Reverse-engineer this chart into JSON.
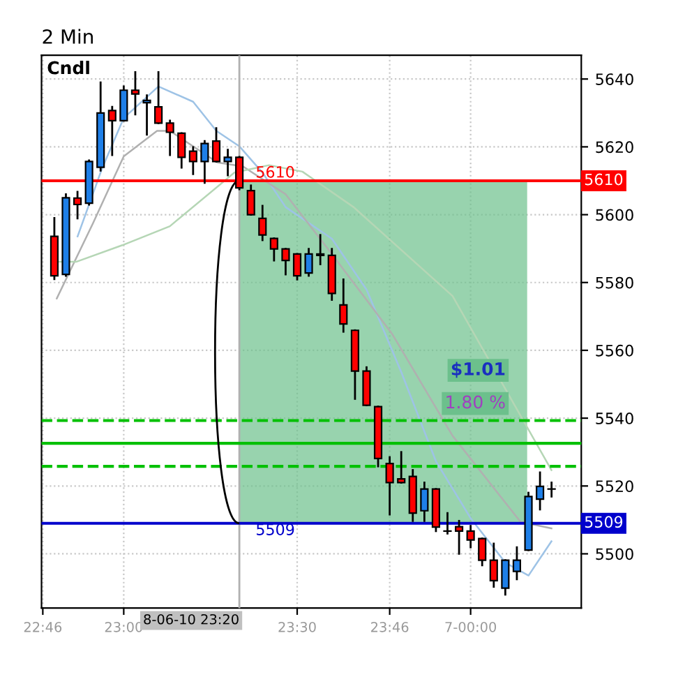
{
  "chart_data": {
    "type": "candlestick",
    "title": "2 Min",
    "x": [
      22.8,
      22.8333,
      22.8667,
      22.9,
      22.9333,
      22.9667,
      23.0,
      23.0333,
      23.0667,
      23.1,
      23.1333,
      23.1667,
      23.2,
      23.2333,
      23.2667,
      23.3,
      23.3333,
      23.3667,
      23.4,
      23.4333,
      23.4667,
      23.5,
      23.5333,
      23.5667,
      23.6,
      23.6333,
      23.6667,
      23.7,
      23.7333,
      23.7667,
      23.8,
      23.8333,
      23.8667,
      23.9,
      23.9333,
      23.9667,
      24.0,
      24.0333,
      24.0667,
      24.1,
      24.1333,
      24.1667,
      24.2,
      24.2333
    ],
    "ohlc": [
      [
        5593.6,
        5599,
        5581,
        5582
      ],
      [
        5582.4,
        5606,
        5582,
        5605
      ],
      [
        5604.9,
        5606.7,
        5598.9,
        5603
      ],
      [
        5603.4,
        5616,
        5603,
        5615.7
      ],
      [
        5614,
        5639,
        5613,
        5630
      ],
      [
        5630.7,
        5631.8,
        5617.6,
        5627.7
      ],
      [
        5627.7,
        5637.8,
        5627.7,
        5636.7
      ],
      [
        5636.7,
        5642,
        5629.6,
        5635.6
      ],
      [
        5633,
        5635.2,
        5623.6,
        5633.7
      ],
      [
        5631.8,
        5642,
        5627,
        5627
      ],
      [
        5627,
        5627.7,
        5617.6,
        5624.3
      ],
      [
        5624,
        5624,
        5613.9,
        5616.9
      ],
      [
        5618.7,
        5619.9,
        5612,
        5615.7
      ],
      [
        5615.7,
        5621.7,
        5609.4,
        5621
      ],
      [
        5621.7,
        5625.5,
        5615.7,
        5615.7
      ],
      [
        5615.7,
        5619.1,
        5611.6,
        5616.9
      ],
      [
        5616.9,
        5617,
        5607.5,
        5607.9
      ],
      [
        5607.1,
        5608.6,
        5600,
        5600
      ],
      [
        5598.9,
        5602.6,
        5592.5,
        5594
      ],
      [
        5593,
        5593,
        5586.5,
        5589.9
      ],
      [
        5589.9,
        5589.9,
        5582.4,
        5586.5
      ],
      [
        5588.4,
        5588.4,
        5580.9,
        5582
      ],
      [
        5582.8,
        5589.9,
        5582,
        5588.4
      ],
      [
        5588,
        5594,
        5585.4,
        5588.4
      ],
      [
        5588,
        5589.9,
        5574.9,
        5576.8
      ],
      [
        5573.4,
        5580.9,
        5565.5,
        5567.8
      ],
      [
        5565.9,
        5565.9,
        5545.7,
        5553.9
      ],
      [
        5553.9,
        5555,
        5543.8,
        5543.8
      ],
      [
        5543.4,
        5543.4,
        5525.8,
        5528.1
      ],
      [
        5526.6,
        5528.5,
        5511.6,
        5521
      ],
      [
        5522.1,
        5530,
        5521,
        5521
      ],
      [
        5522.8,
        5524.7,
        5509.7,
        5512
      ],
      [
        5512.7,
        5521,
        5509.7,
        5519.1
      ],
      [
        5519.1,
        5519.1,
        5506.7,
        5507.9
      ],
      [
        5506.7,
        5512,
        5506,
        5506.7
      ],
      [
        5508,
        5509.7,
        5500,
        5506.7
      ],
      [
        5506.7,
        5508.2,
        5501.9,
        5504.1
      ],
      [
        5504.5,
        5504.5,
        5496.6,
        5498.1
      ],
      [
        5498.1,
        5503,
        5490.3,
        5492.1
      ],
      [
        5489.9,
        5498.1,
        5488,
        5498.1
      ],
      [
        5494.8,
        5501.9,
        5492.5,
        5498.1
      ],
      [
        5501.1,
        5518,
        5501.1,
        5516.9
      ],
      [
        5516.1,
        5524,
        5513.1,
        5519.9
      ],
      [
        5519.1,
        5521,
        5516.9,
        5519.1
      ]
    ],
    "colors": [
      "#ff0000",
      "#1e7fe8",
      "#ff0000",
      "#1e7fe8",
      "#1e7fe8",
      "#ff0000",
      "#1e7fe8",
      "#ff0000",
      "#1e7fe8",
      "#ff0000",
      "#ff0000",
      "#ff0000",
      "#ff0000",
      "#1e7fe8",
      "#ff0000",
      "#1e7fe8",
      "#ff0000",
      "#ff0000",
      "#ff0000",
      "#ff0000",
      "#ff0000",
      "#ff0000",
      "#1e7fe8",
      "#1e7fe8",
      "#ff0000",
      "#ff0000",
      "#ff0000",
      "#ff0000",
      "#ff0000",
      "#ff0000",
      "#ff0000",
      "#ff0000",
      "#1e7fe8",
      "#ff0000",
      "#000000",
      "#ff0000",
      "#ff0000",
      "#ff0000",
      "#ff0000",
      "#1e7fe8",
      "#1e7fe8",
      "#1e7fe8",
      "#1e7fe8",
      "#000000"
    ],
    "series": [
      {
        "type": "line",
        "color": "#9ec3e6",
        "x": [
          22.867,
          22.937,
          23.0,
          23.1,
          23.2,
          23.267,
          23.333,
          23.4,
          23.467,
          23.6,
          23.7,
          23.8,
          23.9,
          24.0,
          24.1,
          24.167,
          24.233
        ],
        "values": [
          5593.6,
          5613.5,
          5628.5,
          5637.8,
          5633.3,
          5624.7,
          5620.2,
          5612.4,
          5602.2,
          5592.9,
          5577.9,
          5553.6,
          5527.3,
          5510.5,
          5497.4,
          5493.6,
          5503.7
        ]
      },
      {
        "type": "line",
        "color": "#b0b0b0",
        "x": [
          22.807,
          22.911,
          23.0,
          23.096,
          23.133,
          23.27,
          23.344,
          23.467,
          23.589,
          23.774,
          23.948,
          24.144,
          24.233
        ],
        "values": [
          5575.3,
          5597.4,
          5617.2,
          5624.7,
          5624.7,
          5615.4,
          5614.2,
          5606.0,
          5589.9,
          5564.8,
          5534.8,
          5509.4,
          5507.5
        ]
      },
      {
        "type": "line",
        "color": "#b5d6b5",
        "x": [
          22.807,
          22.863,
          22.996,
          23.133,
          23.319,
          23.419,
          23.515,
          23.663,
          23.948,
          24.233
        ],
        "values": [
          5586.1,
          5586.1,
          5591.0,
          5596.6,
          5612.4,
          5614.6,
          5612.7,
          5602.2,
          5576.0,
          5524.7
        ]
      }
    ],
    "xlim": [
      22.763,
      24.319
    ],
    "ylim": [
      5484,
      5647
    ],
    "xticks": [
      {
        "value": 22.7667,
        "label": "22:46"
      },
      {
        "value": 23.0,
        "label": "23:00"
      },
      {
        "value": 23.5,
        "label": "23:30"
      },
      {
        "value": 23.7667,
        "label": "23:46"
      },
      {
        "value": 24.0,
        "label": "7-00:00"
      }
    ],
    "yticks": [
      5500,
      5520,
      5540,
      5560,
      5580,
      5600,
      5620,
      5640
    ],
    "grid": true,
    "ref_lines": [
      {
        "axis": "y",
        "value": 5610,
        "label": "5610",
        "color": "#ff0000"
      },
      {
        "axis": "y",
        "value": 5509,
        "label": "5509",
        "color": "#0000cc"
      },
      {
        "axis": "y",
        "value": 5539.3,
        "color": "#00c000",
        "line_style": "dashed"
      },
      {
        "axis": "y",
        "value": 5532.6,
        "color": "#00c000",
        "line_style": "solid"
      },
      {
        "axis": "y",
        "value": 5525.8,
        "color": "#00c000",
        "line_style": "dashed"
      },
      {
        "axis": "x",
        "value": 23.3333,
        "label": "8-06-10 23:20",
        "color": "#b0b0b0"
      }
    ],
    "bands": [
      {
        "axis": "x",
        "from": 23.3333,
        "to": 24.163,
        "color": "#6cc08c"
      }
    ],
    "annotations": [
      "Cndl",
      "$1.01",
      "1.80 %"
    ]
  }
}
